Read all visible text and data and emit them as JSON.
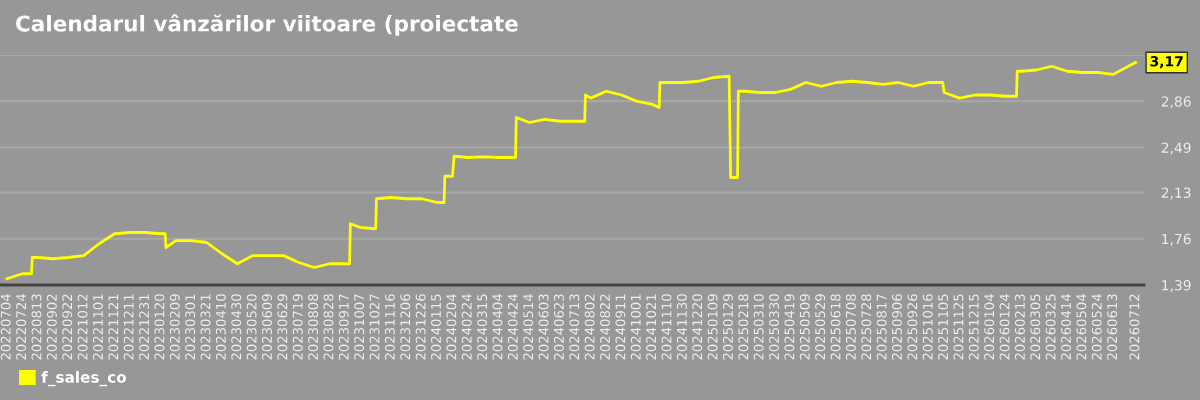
{
  "chart_data": {
    "type": "line",
    "title": "Calendarul vânzărilor viitoare (proiectate",
    "x": [
      "2022-07-04",
      "2022-07-24",
      "2022-08-05",
      "2022-08-06",
      "2022-08-13",
      "2022-09-02",
      "2022-09-22",
      "2022-10-12",
      "2022-11-01",
      "2022-11-21",
      "2022-12-11",
      "2022-12-31",
      "2023-01-20",
      "2023-01-26",
      "2023-01-27",
      "2023-02-09",
      "2023-03-01",
      "2023-03-21",
      "2023-04-10",
      "2023-04-30",
      "2023-05-20",
      "2023-06-09",
      "2023-06-29",
      "2023-07-19",
      "2023-08-08",
      "2023-08-28",
      "2023-09-17",
      "2023-09-23",
      "2023-09-24",
      "2023-10-07",
      "2023-10-27",
      "2023-10-28",
      "2023-11-16",
      "2023-12-06",
      "2023-12-26",
      "2024-01-15",
      "2024-01-24",
      "2024-01-25",
      "2024-02-04",
      "2024-02-06",
      "2024-02-24",
      "2024-03-15",
      "2024-04-04",
      "2024-04-24",
      "2024-04-26",
      "2024-04-27",
      "2024-05-14",
      "2024-06-03",
      "2024-06-23",
      "2024-07-13",
      "2024-07-25",
      "2024-07-26",
      "2024-08-02",
      "2024-08-22",
      "2024-09-11",
      "2024-10-01",
      "2024-10-21",
      "2024-10-30",
      "2024-10-31",
      "2024-11-10",
      "2024-11-30",
      "2024-12-20",
      "2025-01-09",
      "2025-01-29",
      "2025-01-31",
      "2025-02-09",
      "2025-02-10",
      "2025-02-18",
      "2025-03-10",
      "2025-03-30",
      "2025-04-19",
      "2025-05-09",
      "2025-05-29",
      "2025-06-18",
      "2025-07-08",
      "2025-07-28",
      "2025-08-17",
      "2025-09-06",
      "2025-09-26",
      "2025-10-16",
      "2025-11-03",
      "2025-11-05",
      "2025-11-25",
      "2025-12-15",
      "2026-01-04",
      "2026-01-24",
      "2026-02-07",
      "2026-02-08",
      "2026-02-13",
      "2026-03-05",
      "2026-03-25",
      "2026-04-14",
      "2026-05-04",
      "2026-05-24",
      "2026-06-13",
      "2026-07-12"
    ],
    "series": [
      {
        "name": "f_sales_co",
        "color": "#ffff00",
        "values": [
          1.44,
          1.48,
          1.48,
          1.61,
          1.61,
          1.6,
          1.61,
          1.625,
          1.72,
          1.8,
          1.81,
          1.81,
          1.8,
          1.8,
          1.69,
          1.745,
          1.745,
          1.73,
          1.64,
          1.56,
          1.625,
          1.625,
          1.625,
          1.57,
          1.53,
          1.56,
          1.56,
          1.56,
          1.88,
          1.85,
          1.84,
          2.08,
          2.09,
          2.08,
          2.08,
          2.05,
          2.05,
          2.26,
          2.26,
          2.42,
          2.41,
          2.415,
          2.41,
          2.41,
          2.41,
          2.73,
          2.69,
          2.715,
          2.7,
          2.7,
          2.7,
          2.91,
          2.885,
          2.94,
          2.91,
          2.86,
          2.835,
          2.81,
          3.01,
          3.01,
          3.01,
          3.02,
          3.05,
          3.06,
          2.25,
          2.25,
          2.94,
          2.94,
          2.93,
          2.93,
          2.955,
          3.01,
          2.98,
          3.01,
          3.02,
          3.01,
          2.995,
          3.01,
          2.98,
          3.01,
          3.01,
          2.93,
          2.885,
          2.91,
          2.91,
          2.9,
          2.9,
          3.1,
          3.1,
          3.11,
          3.14,
          3.1,
          3.09,
          3.09,
          3.075,
          3.17
        ],
        "value_labels": [
          null,
          null,
          null,
          null,
          null,
          null,
          null,
          null,
          null,
          null,
          null,
          null,
          null,
          null,
          null,
          null,
          null,
          null,
          null,
          null,
          null,
          null,
          null,
          null,
          null,
          null,
          null,
          null,
          null,
          null,
          null,
          null,
          null,
          null,
          null,
          null,
          null,
          null,
          null,
          null,
          null,
          null,
          null,
          null,
          null,
          null,
          null,
          null,
          null,
          null,
          null,
          null,
          null,
          null,
          null,
          null,
          null,
          null,
          null,
          null,
          null,
          null,
          null,
          null,
          null,
          null,
          null,
          null,
          null,
          null,
          null,
          null,
          null,
          null,
          null,
          null,
          null,
          null,
          null,
          null,
          null,
          null,
          null,
          null,
          null,
          null,
          null,
          null,
          null,
          null,
          null,
          null,
          null,
          null,
          null,
          "3,17"
        ]
      }
    ],
    "xlim": [
      "2022-06-25",
      "2026-07-23"
    ],
    "xticks": [
      {
        "value": "2022-07-04",
        "label": "20220704"
      },
      {
        "value": "2022-07-24",
        "label": "20220724"
      },
      {
        "value": "2022-08-13",
        "label": "20220813"
      },
      {
        "value": "2022-09-02",
        "label": "20220902"
      },
      {
        "value": "2022-09-22",
        "label": "20220922"
      },
      {
        "value": "2022-10-12",
        "label": "20221012"
      },
      {
        "value": "2022-11-01",
        "label": "20221101"
      },
      {
        "value": "2022-11-21",
        "label": "20221121"
      },
      {
        "value": "2022-12-11",
        "label": "20221211"
      },
      {
        "value": "2022-12-31",
        "label": "20221231"
      },
      {
        "value": "2023-01-20",
        "label": "20230120"
      },
      {
        "value": "2023-02-09",
        "label": "20230209"
      },
      {
        "value": "2023-03-01",
        "label": "20230301"
      },
      {
        "value": "2023-03-21",
        "label": "20230321"
      },
      {
        "value": "2023-04-10",
        "label": "20230410"
      },
      {
        "value": "2023-04-30",
        "label": "20230430"
      },
      {
        "value": "2023-05-20",
        "label": "20230520"
      },
      {
        "value": "2023-06-09",
        "label": "20230609"
      },
      {
        "value": "2023-06-29",
        "label": "20230629"
      },
      {
        "value": "2023-07-19",
        "label": "20230719"
      },
      {
        "value": "2023-08-08",
        "label": "20230808"
      },
      {
        "value": "2023-08-28",
        "label": "20230828"
      },
      {
        "value": "2023-09-17",
        "label": "20230917"
      },
      {
        "value": "2023-10-07",
        "label": "20231007"
      },
      {
        "value": "2023-10-27",
        "label": "20231027"
      },
      {
        "value": "2023-11-16",
        "label": "20231116"
      },
      {
        "value": "2023-12-06",
        "label": "20231206"
      },
      {
        "value": "2023-12-26",
        "label": "20231226"
      },
      {
        "value": "2024-01-15",
        "label": "20240115"
      },
      {
        "value": "2024-02-04",
        "label": "20240204"
      },
      {
        "value": "2024-02-24",
        "label": "20240224"
      },
      {
        "value": "2024-03-15",
        "label": "20240315"
      },
      {
        "value": "2024-04-04",
        "label": "20240404"
      },
      {
        "value": "2024-04-24",
        "label": "20240424"
      },
      {
        "value": "2024-05-14",
        "label": "20240514"
      },
      {
        "value": "2024-06-03",
        "label": "20240603"
      },
      {
        "value": "2024-06-23",
        "label": "20240623"
      },
      {
        "value": "2024-07-13",
        "label": "20240713"
      },
      {
        "value": "2024-08-02",
        "label": "20240802"
      },
      {
        "value": "2024-08-22",
        "label": "20240822"
      },
      {
        "value": "2024-09-11",
        "label": "20240911"
      },
      {
        "value": "2024-10-01",
        "label": "20241001"
      },
      {
        "value": "2024-10-21",
        "label": "20241021"
      },
      {
        "value": "2024-11-10",
        "label": "20241110"
      },
      {
        "value": "2024-11-30",
        "label": "20241130"
      },
      {
        "value": "2024-12-20",
        "label": "20241220"
      },
      {
        "value": "2025-01-09",
        "label": "20250109"
      },
      {
        "value": "2025-01-29",
        "label": "20250129"
      },
      {
        "value": "2025-02-18",
        "label": "20250218"
      },
      {
        "value": "2025-03-10",
        "label": "20250310"
      },
      {
        "value": "2025-03-30",
        "label": "20250330"
      },
      {
        "value": "2025-04-19",
        "label": "20250419"
      },
      {
        "value": "2025-05-09",
        "label": "20250509"
      },
      {
        "value": "2025-05-29",
        "label": "20250529"
      },
      {
        "value": "2025-06-18",
        "label": "20250618"
      },
      {
        "value": "2025-07-08",
        "label": "20250708"
      },
      {
        "value": "2025-07-28",
        "label": "20250728"
      },
      {
        "value": "2025-08-17",
        "label": "20250817"
      },
      {
        "value": "2025-09-06",
        "label": "20250906"
      },
      {
        "value": "2025-09-26",
        "label": "20250926"
      },
      {
        "value": "2025-10-16",
        "label": "20251016"
      },
      {
        "value": "2025-11-05",
        "label": "20251105"
      },
      {
        "value": "2025-11-25",
        "label": "20251125"
      },
      {
        "value": "2025-12-15",
        "label": "20251215"
      },
      {
        "value": "2026-01-04",
        "label": "20260104"
      },
      {
        "value": "2026-01-24",
        "label": "20260124"
      },
      {
        "value": "2026-02-13",
        "label": "20260213"
      },
      {
        "value": "2026-03-05",
        "label": "20260305"
      },
      {
        "value": "2026-03-25",
        "label": "20260325"
      },
      {
        "value": "2026-04-14",
        "label": "20260414"
      },
      {
        "value": "2026-05-04",
        "label": "20260504"
      },
      {
        "value": "2026-05-24",
        "label": "20260524"
      },
      {
        "value": "2026-06-13",
        "label": "20260613"
      },
      {
        "value": "2026-07-12",
        "label": "20260712"
      }
    ],
    "ylim": [
      1.39,
      3.23
    ],
    "yticks": [
      {
        "value": 1.39,
        "label": "1,39"
      },
      {
        "value": 1.76,
        "label": "1,76"
      },
      {
        "value": 2.13,
        "label": "2,13"
      },
      {
        "value": 2.49,
        "label": "2,49"
      },
      {
        "value": 2.86,
        "label": "2,86"
      },
      {
        "value": 3.23,
        "label": null
      }
    ],
    "grid": "y",
    "legend": "bottom",
    "marker": "none",
    "line_style": "solid"
  }
}
